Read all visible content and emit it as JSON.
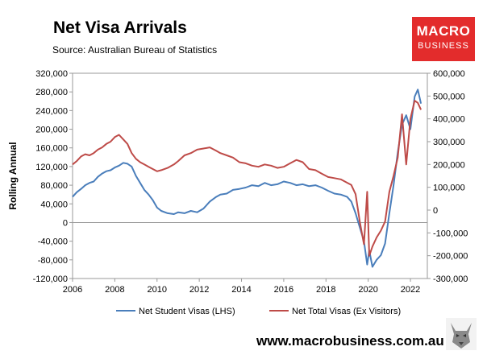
{
  "header": {
    "title": "Net Visa Arrivals",
    "subtitle": "Source: Australian Bureau of Statistics"
  },
  "logo": {
    "line1": "MACRO",
    "line2": "BUSINESS",
    "color": "#e32c2c"
  },
  "footer": {
    "url": "www.macrobusiness.com.au"
  },
  "chart_data": {
    "type": "line",
    "title": "",
    "ylabel": "Rolling Annual",
    "xlim": [
      2006,
      2022.8
    ],
    "xticks": [
      "2006",
      "2008",
      "2010",
      "2012",
      "2014",
      "2016",
      "2018",
      "2020",
      "2022"
    ],
    "ylim_left": [
      -120000,
      320000
    ],
    "ylim_right": [
      -300000,
      600000
    ],
    "yticks_left": [
      "320,000",
      "280,000",
      "240,000",
      "200,000",
      "160,000",
      "120,000",
      "80,000",
      "40,000",
      "0",
      "-40,000",
      "-80,000",
      "-120,000"
    ],
    "yticks_right": [
      "600,000",
      "500,000",
      "400,000",
      "300,000",
      "200,000",
      "100,000",
      "0",
      "-100,000",
      "-200,000",
      "-300,000"
    ],
    "grid": false,
    "legend_position": "bottom",
    "series": [
      {
        "name": "Net Student Visas (LHS)",
        "axis": "left",
        "color": "#4a7ebb",
        "x": [
          2006.0,
          2006.2,
          2006.4,
          2006.6,
          2006.8,
          2007.0,
          2007.2,
          2007.4,
          2007.6,
          2007.8,
          2008.0,
          2008.2,
          2008.4,
          2008.6,
          2008.8,
          2009.0,
          2009.2,
          2009.4,
          2009.6,
          2009.8,
          2010.0,
          2010.2,
          2010.5,
          2010.8,
          2011.0,
          2011.3,
          2011.6,
          2011.9,
          2012.2,
          2012.5,
          2012.8,
          2013.0,
          2013.3,
          2013.6,
          2013.9,
          2014.2,
          2014.5,
          2014.8,
          2015.1,
          2015.4,
          2015.7,
          2016.0,
          2016.3,
          2016.6,
          2016.9,
          2017.2,
          2017.5,
          2017.8,
          2018.1,
          2018.4,
          2018.7,
          2019.0,
          2019.2,
          2019.4,
          2019.6,
          2019.8,
          2019.95,
          2020.05,
          2020.2,
          2020.4,
          2020.6,
          2020.8,
          2021.0,
          2021.2,
          2021.4,
          2021.6,
          2021.8,
          2022.0,
          2022.2,
          2022.35,
          2022.5
        ],
        "values": [
          55000,
          65000,
          72000,
          80000,
          85000,
          88000,
          98000,
          105000,
          110000,
          112000,
          118000,
          122000,
          128000,
          126000,
          120000,
          100000,
          85000,
          70000,
          60000,
          48000,
          32000,
          25000,
          20000,
          18000,
          22000,
          20000,
          25000,
          22000,
          30000,
          45000,
          55000,
          60000,
          62000,
          70000,
          72000,
          75000,
          80000,
          78000,
          85000,
          80000,
          82000,
          88000,
          85000,
          80000,
          82000,
          78000,
          80000,
          75000,
          68000,
          62000,
          60000,
          55000,
          45000,
          20000,
          -10000,
          -40000,
          -90000,
          -60000,
          -95000,
          -80000,
          -70000,
          -45000,
          20000,
          80000,
          150000,
          210000,
          230000,
          200000,
          270000,
          285000,
          255000
        ]
      },
      {
        "name": "Net Total Visas (Ex Visitors)",
        "axis": "right",
        "color": "#be4b48",
        "x": [
          2006.0,
          2006.2,
          2006.4,
          2006.6,
          2006.8,
          2007.0,
          2007.2,
          2007.4,
          2007.6,
          2007.8,
          2008.0,
          2008.2,
          2008.4,
          2008.6,
          2008.8,
          2009.0,
          2009.2,
          2009.4,
          2009.6,
          2009.8,
          2010.0,
          2010.2,
          2010.5,
          2010.8,
          2011.0,
          2011.3,
          2011.6,
          2011.9,
          2012.2,
          2012.5,
          2012.8,
          2013.0,
          2013.3,
          2013.6,
          2013.9,
          2014.2,
          2014.5,
          2014.8,
          2015.1,
          2015.4,
          2015.7,
          2016.0,
          2016.3,
          2016.6,
          2016.9,
          2017.2,
          2017.5,
          2017.8,
          2018.1,
          2018.4,
          2018.7,
          2019.0,
          2019.2,
          2019.4,
          2019.6,
          2019.8,
          2019.95,
          2020.05,
          2020.2,
          2020.4,
          2020.6,
          2020.8,
          2021.0,
          2021.2,
          2021.4,
          2021.6,
          2021.8,
          2022.0,
          2022.2,
          2022.35,
          2022.5
        ],
        "values": [
          200000,
          215000,
          235000,
          245000,
          240000,
          250000,
          265000,
          275000,
          290000,
          300000,
          320000,
          330000,
          310000,
          290000,
          250000,
          225000,
          210000,
          200000,
          190000,
          180000,
          170000,
          175000,
          185000,
          200000,
          215000,
          240000,
          250000,
          265000,
          270000,
          275000,
          260000,
          250000,
          240000,
          230000,
          210000,
          205000,
          195000,
          190000,
          200000,
          195000,
          185000,
          190000,
          205000,
          220000,
          210000,
          180000,
          175000,
          160000,
          145000,
          140000,
          135000,
          120000,
          110000,
          70000,
          -50000,
          -150000,
          80000,
          -200000,
          -160000,
          -120000,
          -90000,
          -50000,
          80000,
          150000,
          230000,
          420000,
          200000,
          400000,
          480000,
          470000,
          440000
        ]
      }
    ]
  }
}
